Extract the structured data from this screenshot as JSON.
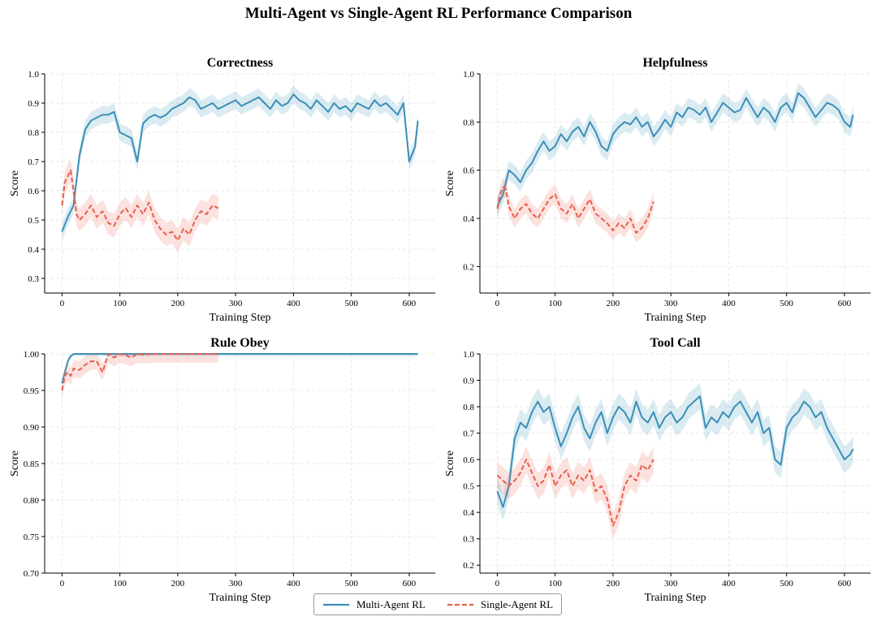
{
  "figure": {
    "title": "Multi-Agent vs Single-Agent RL Performance Comparison"
  },
  "legend": {
    "placement": "bottom-center",
    "entries": [
      {
        "name": "Multi-Agent RL",
        "color": "#3a8fb7",
        "style": "solid"
      },
      {
        "name": "Single-Agent RL",
        "color": "#e8604c",
        "style": "dashed"
      }
    ]
  },
  "chart_data": [
    {
      "type": "line",
      "title": "Correctness",
      "xlabel": "Training Step",
      "ylabel": "Score",
      "xlim": [
        -30,
        645
      ],
      "ylim": [
        0.25,
        1.0
      ],
      "xticks": [
        0,
        100,
        200,
        300,
        400,
        500,
        600
      ],
      "yticks": [
        0.3,
        0.4,
        0.5,
        0.6,
        0.7,
        0.8,
        0.9,
        1.0
      ],
      "ytick_decimals": 1,
      "grid": true,
      "series": [
        {
          "name": "Multi-Agent RL",
          "color": "#3a8fb7",
          "style": "solid",
          "band": 0.03,
          "x": [
            0,
            10,
            20,
            30,
            40,
            50,
            60,
            70,
            80,
            90,
            100,
            110,
            120,
            130,
            140,
            150,
            160,
            170,
            180,
            190,
            200,
            210,
            220,
            230,
            240,
            250,
            260,
            270,
            280,
            290,
            300,
            310,
            320,
            330,
            340,
            350,
            360,
            370,
            380,
            390,
            400,
            410,
            420,
            430,
            440,
            450,
            460,
            470,
            480,
            490,
            500,
            510,
            520,
            530,
            540,
            550,
            560,
            570,
            580,
            590,
            600,
            610,
            615
          ],
          "y": [
            0.46,
            0.51,
            0.55,
            0.72,
            0.81,
            0.84,
            0.85,
            0.86,
            0.86,
            0.87,
            0.8,
            0.79,
            0.78,
            0.7,
            0.83,
            0.85,
            0.86,
            0.85,
            0.86,
            0.88,
            0.89,
            0.9,
            0.92,
            0.91,
            0.88,
            0.89,
            0.9,
            0.88,
            0.89,
            0.9,
            0.91,
            0.89,
            0.9,
            0.91,
            0.92,
            0.9,
            0.88,
            0.91,
            0.89,
            0.9,
            0.93,
            0.91,
            0.9,
            0.88,
            0.91,
            0.89,
            0.87,
            0.9,
            0.88,
            0.89,
            0.87,
            0.9,
            0.89,
            0.88,
            0.91,
            0.89,
            0.9,
            0.88,
            0.86,
            0.9,
            0.7,
            0.75,
            0.84
          ]
        },
        {
          "name": "Single-Agent RL",
          "color": "#e8604c",
          "style": "dashed",
          "band": 0.04,
          "x": [
            0,
            5,
            10,
            15,
            20,
            25,
            30,
            40,
            50,
            60,
            70,
            80,
            90,
            100,
            110,
            120,
            130,
            140,
            150,
            160,
            170,
            180,
            190,
            200,
            210,
            220,
            230,
            240,
            250,
            260,
            270
          ],
          "y": [
            0.55,
            0.63,
            0.65,
            0.67,
            0.6,
            0.52,
            0.5,
            0.52,
            0.55,
            0.51,
            0.53,
            0.49,
            0.48,
            0.52,
            0.54,
            0.51,
            0.55,
            0.52,
            0.56,
            0.5,
            0.47,
            0.45,
            0.46,
            0.43,
            0.47,
            0.45,
            0.5,
            0.53,
            0.52,
            0.55,
            0.54
          ]
        }
      ]
    },
    {
      "type": "line",
      "title": "Helpfulness",
      "xlabel": "Training Step",
      "ylabel": "Score",
      "xlim": [
        -30,
        645
      ],
      "ylim": [
        0.09,
        1.0
      ],
      "xticks": [
        0,
        100,
        200,
        300,
        400,
        500,
        600
      ],
      "yticks": [
        0.2,
        0.4,
        0.6,
        0.8,
        1.0
      ],
      "ytick_decimals": 1,
      "grid": true,
      "series": [
        {
          "name": "Multi-Agent RL",
          "color": "#3a8fb7",
          "style": "solid",
          "band": 0.04,
          "x": [
            0,
            10,
            20,
            30,
            40,
            50,
            60,
            70,
            80,
            90,
            100,
            110,
            120,
            130,
            140,
            150,
            160,
            170,
            180,
            190,
            200,
            210,
            220,
            230,
            240,
            250,
            260,
            270,
            280,
            290,
            300,
            310,
            320,
            330,
            340,
            350,
            360,
            370,
            380,
            390,
            400,
            410,
            420,
            430,
            440,
            450,
            460,
            470,
            480,
            490,
            500,
            510,
            520,
            530,
            540,
            550,
            560,
            570,
            580,
            590,
            600,
            610,
            615
          ],
          "y": [
            0.45,
            0.5,
            0.6,
            0.58,
            0.55,
            0.6,
            0.63,
            0.68,
            0.72,
            0.68,
            0.7,
            0.75,
            0.72,
            0.76,
            0.78,
            0.74,
            0.8,
            0.76,
            0.7,
            0.68,
            0.75,
            0.78,
            0.8,
            0.79,
            0.82,
            0.78,
            0.8,
            0.74,
            0.77,
            0.81,
            0.78,
            0.84,
            0.82,
            0.86,
            0.85,
            0.83,
            0.86,
            0.8,
            0.84,
            0.88,
            0.86,
            0.84,
            0.85,
            0.9,
            0.86,
            0.82,
            0.86,
            0.84,
            0.8,
            0.86,
            0.88,
            0.84,
            0.92,
            0.9,
            0.86,
            0.82,
            0.85,
            0.88,
            0.87,
            0.85,
            0.8,
            0.78,
            0.83
          ]
        },
        {
          "name": "Single-Agent RL",
          "color": "#e8604c",
          "style": "dashed",
          "band": 0.04,
          "x": [
            0,
            5,
            10,
            15,
            20,
            30,
            40,
            50,
            60,
            70,
            80,
            90,
            100,
            110,
            120,
            130,
            140,
            150,
            160,
            170,
            180,
            190,
            200,
            210,
            220,
            230,
            240,
            250,
            260,
            270
          ],
          "y": [
            0.44,
            0.5,
            0.53,
            0.52,
            0.45,
            0.4,
            0.44,
            0.46,
            0.42,
            0.4,
            0.44,
            0.48,
            0.5,
            0.44,
            0.42,
            0.46,
            0.4,
            0.44,
            0.48,
            0.42,
            0.4,
            0.38,
            0.35,
            0.38,
            0.36,
            0.4,
            0.34,
            0.36,
            0.4,
            0.47
          ]
        }
      ]
    },
    {
      "type": "line",
      "title": "Rule Obey",
      "xlabel": "Training Step",
      "ylabel": "Score",
      "xlim": [
        -30,
        645
      ],
      "ylim": [
        0.7,
        1.0
      ],
      "xticks": [
        0,
        100,
        200,
        300,
        400,
        500,
        600
      ],
      "yticks": [
        0.7,
        0.75,
        0.8,
        0.85,
        0.9,
        0.95,
        1.0
      ],
      "ytick_decimals": 2,
      "grid": true,
      "series": [
        {
          "name": "Multi-Agent RL",
          "color": "#3a8fb7",
          "style": "solid",
          "band": 0.003,
          "x": [
            0,
            5,
            10,
            15,
            20,
            30,
            40,
            100,
            200,
            300,
            400,
            500,
            615
          ],
          "y": [
            0.96,
            0.975,
            0.99,
            0.997,
            1.0,
            1.0,
            1.0,
            1.0,
            1.0,
            1.0,
            1.0,
            1.0,
            1.0
          ]
        },
        {
          "name": "Single-Agent RL",
          "color": "#e8604c",
          "style": "dashed",
          "band": 0.012,
          "x": [
            0,
            5,
            10,
            15,
            20,
            30,
            40,
            50,
            60,
            70,
            80,
            90,
            100,
            110,
            120,
            130,
            140,
            160,
            180,
            200,
            220,
            240,
            260,
            270
          ],
          "y": [
            0.95,
            0.97,
            0.975,
            0.97,
            0.98,
            0.978,
            0.985,
            0.99,
            0.99,
            0.975,
            1.0,
            0.995,
            1.0,
            0.998,
            0.995,
            1.0,
            0.999,
            1.0,
            1.0,
            1.0,
            1.0,
            1.0,
            1.0,
            1.0
          ]
        }
      ]
    },
    {
      "type": "line",
      "title": "Tool Call",
      "xlabel": "Training Step",
      "ylabel": "Score",
      "xlim": [
        -30,
        645
      ],
      "ylim": [
        0.17,
        1.0
      ],
      "xticks": [
        0,
        100,
        200,
        300,
        400,
        500,
        600
      ],
      "yticks": [
        0.2,
        0.3,
        0.4,
        0.5,
        0.6,
        0.7,
        0.8,
        0.9,
        1.0
      ],
      "ytick_decimals": 1,
      "grid": true,
      "series": [
        {
          "name": "Multi-Agent RL",
          "color": "#3a8fb7",
          "style": "solid",
          "band": 0.05,
          "x": [
            0,
            10,
            20,
            30,
            40,
            50,
            60,
            70,
            80,
            90,
            100,
            110,
            120,
            130,
            140,
            150,
            160,
            170,
            180,
            190,
            200,
            210,
            220,
            230,
            240,
            250,
            260,
            270,
            280,
            290,
            300,
            310,
            320,
            330,
            340,
            350,
            360,
            370,
            380,
            390,
            400,
            410,
            420,
            430,
            440,
            450,
            460,
            470,
            480,
            490,
            500,
            510,
            520,
            530,
            540,
            550,
            560,
            570,
            580,
            590,
            600,
            610,
            615
          ],
          "y": [
            0.48,
            0.42,
            0.5,
            0.68,
            0.74,
            0.72,
            0.78,
            0.82,
            0.78,
            0.8,
            0.72,
            0.65,
            0.7,
            0.76,
            0.8,
            0.72,
            0.68,
            0.74,
            0.78,
            0.7,
            0.76,
            0.8,
            0.78,
            0.74,
            0.82,
            0.76,
            0.74,
            0.78,
            0.72,
            0.76,
            0.78,
            0.74,
            0.76,
            0.8,
            0.82,
            0.84,
            0.72,
            0.76,
            0.74,
            0.78,
            0.76,
            0.8,
            0.82,
            0.78,
            0.74,
            0.78,
            0.7,
            0.72,
            0.6,
            0.58,
            0.72,
            0.76,
            0.78,
            0.82,
            0.8,
            0.76,
            0.78,
            0.72,
            0.68,
            0.64,
            0.6,
            0.62,
            0.64
          ]
        },
        {
          "name": "Single-Agent RL",
          "color": "#e8604c",
          "style": "dashed",
          "band": 0.05,
          "x": [
            0,
            10,
            20,
            30,
            40,
            50,
            60,
            70,
            80,
            90,
            100,
            110,
            120,
            130,
            140,
            150,
            160,
            170,
            180,
            190,
            200,
            210,
            220,
            230,
            240,
            250,
            260,
            270
          ],
          "y": [
            0.54,
            0.52,
            0.5,
            0.52,
            0.55,
            0.6,
            0.55,
            0.5,
            0.52,
            0.58,
            0.5,
            0.54,
            0.56,
            0.5,
            0.54,
            0.52,
            0.56,
            0.48,
            0.5,
            0.45,
            0.35,
            0.4,
            0.5,
            0.54,
            0.52,
            0.58,
            0.56,
            0.6
          ]
        }
      ]
    }
  ]
}
